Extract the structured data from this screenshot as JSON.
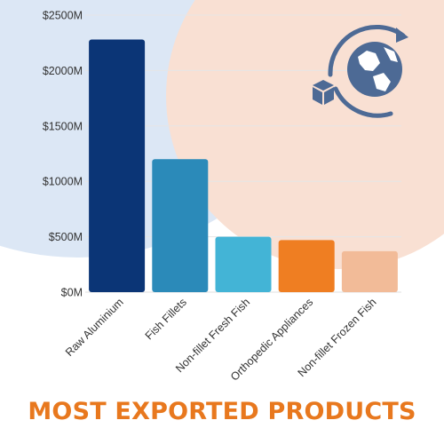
{
  "chart_data": {
    "type": "bar",
    "title": "MOST EXPORTED PRODUCTS",
    "categories": [
      "Raw Aluminium",
      "Fish Fillets",
      "Non-fillet Fresh Fish",
      "Orthopedic Appliances",
      "Non-fillet Frozen Fish"
    ],
    "values": [
      2280,
      1200,
      500,
      470,
      370
    ],
    "value_unit": "USD millions",
    "y_ticks": [
      "$0M",
      "$500M",
      "$1000M",
      "$1500M",
      "$2000M",
      "$2500M"
    ],
    "ylim": [
      0,
      2500
    ],
    "grid": true,
    "legend": "none",
    "bar_colors": [
      "#0b3576",
      "#2b8ab9",
      "#43b4d6",
      "#ef7e22",
      "#f2bb98"
    ]
  },
  "colors": {
    "title": "#e8781e",
    "axis_text": "#333333",
    "gridline": "#e6e6e6",
    "bg_blue": "#dce7f5",
    "bg_peach": "#f9e0d3",
    "icon": "#4d6a95"
  },
  "icon": "globe-rotate-package-icon"
}
